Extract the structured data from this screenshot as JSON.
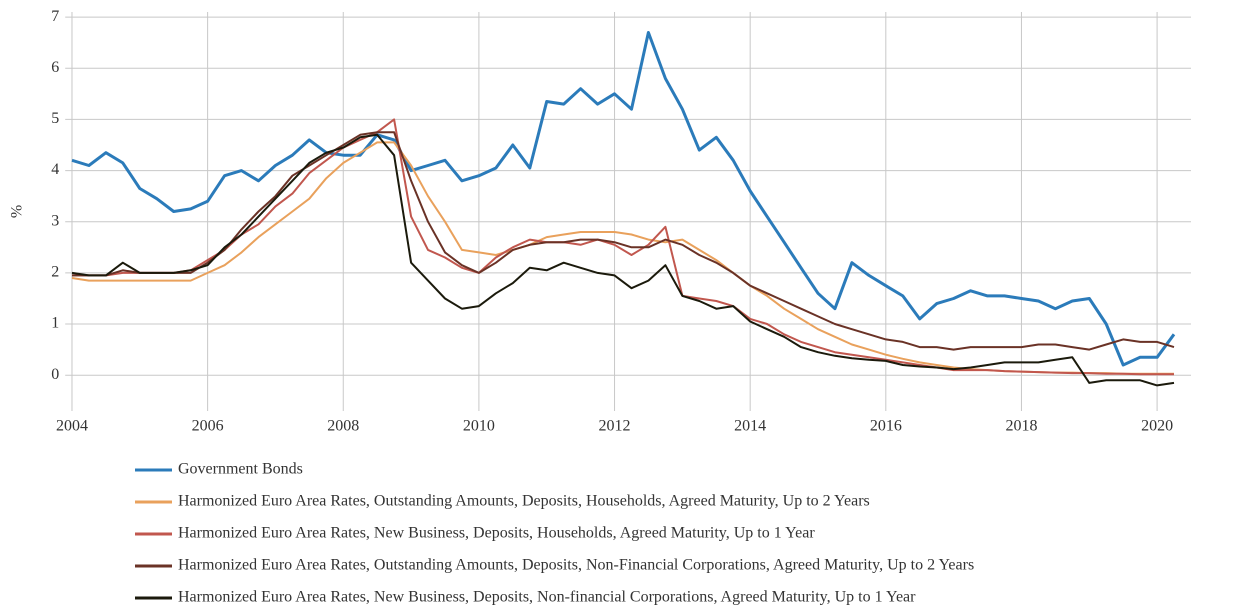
{
  "chart_data": {
    "type": "line",
    "y_label": "%",
    "x": [
      2004,
      2004.25,
      2004.5,
      2004.75,
      2005,
      2005.25,
      2005.5,
      2005.75,
      2006,
      2006.25,
      2006.5,
      2006.75,
      2007,
      2007.25,
      2007.5,
      2007.75,
      2008,
      2008.25,
      2008.5,
      2008.75,
      2009,
      2009.25,
      2009.5,
      2009.75,
      2010,
      2010.25,
      2010.5,
      2010.75,
      2011,
      2011.25,
      2011.5,
      2011.75,
      2012,
      2012.25,
      2012.5,
      2012.75,
      2013,
      2013.25,
      2013.5,
      2013.75,
      2014,
      2014.25,
      2014.5,
      2014.75,
      2015,
      2015.25,
      2015.5,
      2015.75,
      2016,
      2016.25,
      2016.5,
      2016.75,
      2017,
      2017.25,
      2017.5,
      2017.75,
      2018,
      2018.25,
      2018.5,
      2018.75,
      2019,
      2019.25,
      2019.5,
      2019.75,
      2020,
      2020.25
    ],
    "series": [
      {
        "name": "Government Bonds",
        "color": "#2b7bba",
        "values": [
          4.2,
          4.1,
          4.35,
          4.15,
          3.65,
          3.45,
          3.2,
          3.25,
          3.4,
          3.9,
          4.0,
          3.8,
          4.1,
          4.3,
          4.6,
          4.35,
          4.3,
          4.3,
          4.7,
          4.6,
          4.0,
          4.1,
          4.2,
          3.8,
          3.9,
          4.05,
          4.5,
          4.05,
          5.35,
          5.3,
          5.6,
          5.3,
          5.5,
          5.2,
          6.7,
          5.8,
          5.2,
          4.4,
          4.65,
          4.2,
          3.6,
          3.1,
          2.6,
          2.1,
          1.6,
          1.3,
          2.2,
          1.95,
          1.75,
          1.55,
          1.1,
          1.4,
          1.5,
          1.65,
          1.55,
          1.55,
          1.5,
          1.45,
          1.3,
          1.45,
          1.5,
          1.0,
          0.2,
          0.35,
          0.35,
          0.8
        ]
      },
      {
        "name": "Harmonized Euro Area Rates, Outstanding Amounts, Deposits, Households, Agreed Maturity, Up to 2 Years",
        "color": "#e9a15c",
        "values": [
          1.9,
          1.85,
          1.85,
          1.85,
          1.85,
          1.85,
          1.85,
          1.85,
          2.0,
          2.15,
          2.4,
          2.7,
          2.95,
          3.2,
          3.45,
          3.85,
          4.15,
          4.35,
          4.55,
          4.55,
          4.1,
          3.5,
          3.0,
          2.45,
          2.4,
          2.35,
          2.45,
          2.55,
          2.7,
          2.75,
          2.8,
          2.8,
          2.8,
          2.75,
          2.65,
          2.6,
          2.65,
          2.45,
          2.25,
          2.0,
          1.75,
          1.55,
          1.3,
          1.1,
          0.9,
          0.75,
          0.6,
          0.5,
          0.4,
          0.32,
          0.25,
          0.2,
          0.15,
          0.12,
          0.1,
          0.08,
          0.07,
          0.06,
          0.05,
          0.05,
          0.04,
          0.04,
          0.03,
          0.03,
          0.03,
          0.03
        ]
      },
      {
        "name": "Harmonized Euro Area Rates, New Business, Deposits, Households, Agreed Maturity, Up to 1 Year",
        "color": "#c1574e",
        "values": [
          1.95,
          1.95,
          1.95,
          2.0,
          2.0,
          2.0,
          2.0,
          2.05,
          2.25,
          2.45,
          2.75,
          2.95,
          3.3,
          3.55,
          3.95,
          4.2,
          4.45,
          4.6,
          4.75,
          5.0,
          3.1,
          2.45,
          2.3,
          2.1,
          2.0,
          2.3,
          2.5,
          2.65,
          2.6,
          2.6,
          2.55,
          2.65,
          2.55,
          2.35,
          2.55,
          2.9,
          1.55,
          1.5,
          1.45,
          1.35,
          1.1,
          1.0,
          0.8,
          0.65,
          0.55,
          0.45,
          0.4,
          0.35,
          0.3,
          0.25,
          0.2,
          0.15,
          0.1,
          0.1,
          0.1,
          0.08,
          0.07,
          0.06,
          0.05,
          0.04,
          0.04,
          0.03,
          0.03,
          0.02,
          0.02,
          0.02
        ]
      },
      {
        "name": "Harmonized Euro Area Rates, Outstanding Amounts, Deposits, Non-Financial Corporations, Agreed Maturity, Up to 2 Years",
        "color": "#6a3226",
        "values": [
          1.95,
          1.95,
          1.95,
          2.05,
          2.0,
          2.0,
          2.0,
          2.0,
          2.2,
          2.45,
          2.85,
          3.2,
          3.5,
          3.9,
          4.1,
          4.3,
          4.5,
          4.7,
          4.75,
          4.75,
          3.8,
          3.0,
          2.4,
          2.15,
          2.0,
          2.2,
          2.45,
          2.55,
          2.6,
          2.6,
          2.65,
          2.65,
          2.6,
          2.5,
          2.5,
          2.65,
          2.55,
          2.35,
          2.2,
          2.0,
          1.75,
          1.6,
          1.45,
          1.3,
          1.15,
          1.0,
          0.9,
          0.8,
          0.7,
          0.65,
          0.55,
          0.55,
          0.5,
          0.55,
          0.55,
          0.55,
          0.55,
          0.6,
          0.6,
          0.55,
          0.5,
          0.6,
          0.7,
          0.65,
          0.65,
          0.55
        ]
      },
      {
        "name": "Harmonized Euro Area Rates, New Business, Deposits, Non-financial Corporations, Agreed Maturity, Up to 1 Year",
        "color": "#1b1a0c",
        "values": [
          2.0,
          1.95,
          1.95,
          2.2,
          2.0,
          2.0,
          2.0,
          2.05,
          2.15,
          2.5,
          2.75,
          3.1,
          3.45,
          3.8,
          4.15,
          4.35,
          4.45,
          4.65,
          4.7,
          4.3,
          2.2,
          1.85,
          1.5,
          1.3,
          1.35,
          1.6,
          1.8,
          2.1,
          2.05,
          2.2,
          2.1,
          2.0,
          1.95,
          1.7,
          1.85,
          2.15,
          1.55,
          1.45,
          1.3,
          1.35,
          1.05,
          0.9,
          0.75,
          0.55,
          0.45,
          0.38,
          0.33,
          0.3,
          0.28,
          0.2,
          0.17,
          0.15,
          0.12,
          0.15,
          0.2,
          0.25,
          0.25,
          0.25,
          0.3,
          0.35,
          -0.15,
          -0.1,
          -0.1,
          -0.1,
          -0.2,
          -0.15
        ]
      }
    ],
    "xlim": [
      2003.9,
      2020.5
    ],
    "xticks": [
      2004,
      2006,
      2008,
      2010,
      2012,
      2014,
      2016,
      2018,
      2020
    ],
    "ylim": [
      -0.7,
      7.1
    ],
    "yticks": [
      0,
      1,
      2,
      3,
      4,
      5,
      6,
      7
    ],
    "grid": true,
    "legend": "bottom"
  }
}
